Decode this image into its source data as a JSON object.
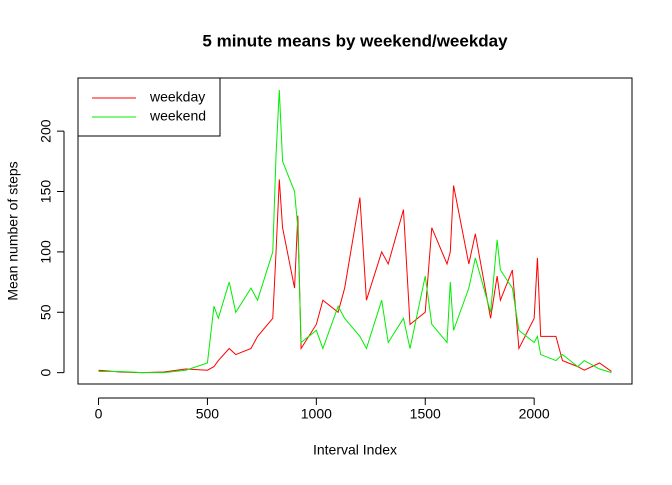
{
  "chart_data": {
    "type": "line",
    "title": "5 minute means by weekend/weekday",
    "x_label": "Interval Index",
    "y_label": "Mean number of steps",
    "x": [
      0,
      100,
      200,
      300,
      400,
      500,
      530,
      550,
      600,
      630,
      700,
      730,
      800,
      815,
      830,
      845,
      900,
      915,
      930,
      1000,
      1030,
      1100,
      1130,
      1200,
      1230,
      1300,
      1330,
      1400,
      1430,
      1500,
      1530,
      1600,
      1615,
      1630,
      1700,
      1730,
      1800,
      1830,
      1845,
      1900,
      1930,
      2000,
      2015,
      2030,
      2100,
      2130,
      2200,
      2230,
      2300,
      2355
    ],
    "series": [
      {
        "name": "weekday",
        "color": "#ff0000",
        "values": [
          2,
          0.5,
          0,
          0.5,
          3,
          2,
          5,
          10,
          20,
          15,
          20,
          30,
          45,
          100,
          160,
          120,
          70,
          130,
          20,
          40,
          60,
          50,
          70,
          145,
          60,
          100,
          90,
          135,
          40,
          50,
          120,
          90,
          100,
          155,
          90,
          115,
          45,
          80,
          60,
          85,
          20,
          45,
          95,
          30,
          30,
          10,
          5,
          2,
          8,
          1
        ]
      },
      {
        "name": "weekend",
        "color": "#00ee00",
        "values": [
          1,
          1,
          0,
          0,
          2,
          8,
          55,
          45,
          75,
          50,
          70,
          60,
          100,
          180,
          234,
          175,
          150,
          120,
          25,
          35,
          20,
          55,
          45,
          30,
          20,
          60,
          25,
          45,
          20,
          80,
          40,
          25,
          75,
          35,
          70,
          95,
          50,
          110,
          85,
          70,
          35,
          25,
          30,
          15,
          10,
          15,
          5,
          10,
          3,
          0
        ]
      }
    ],
    "xlim": [
      -94.2,
      2449.2
    ],
    "ylim": [
      -9.4,
      244
    ],
    "xticks": [
      0,
      500,
      1000,
      1500,
      2000
    ],
    "yticks": [
      0,
      50,
      100,
      150,
      200
    ],
    "legend": "top-left"
  }
}
